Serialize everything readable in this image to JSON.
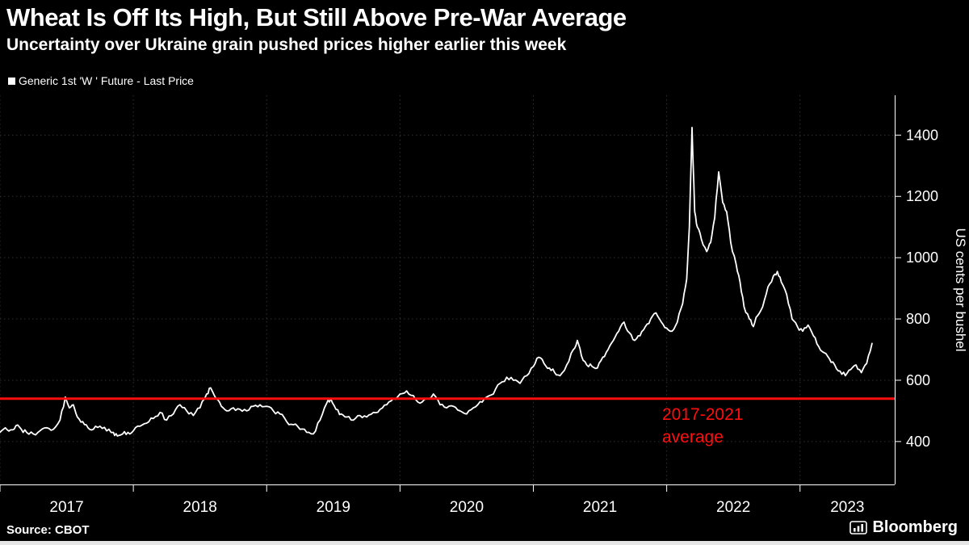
{
  "header": {
    "title": "Wheat Is Off Its High, But Still Above Pre-War Average",
    "subtitle": "Uncertainty over Ukraine grain pushed prices higher earlier this week"
  },
  "legend": {
    "marker_color": "#ffffff",
    "label": "Generic 1st 'W ' Future - Last Price"
  },
  "annotation": {
    "line1": "2017-2021",
    "line2": "average"
  },
  "footer": {
    "source": "Source: CBOT",
    "brand": "Bloomberg"
  },
  "colors": {
    "background": "#000000",
    "text": "#ffffff",
    "grid": "#303030",
    "accent_red": "#ff0e0e"
  },
  "chart_data": {
    "type": "line",
    "title": "Wheat Is Off Its High, But Still Above Pre-War Average",
    "subtitle": "Uncertainty over Ukraine grain pushed prices higher earlier this week",
    "xlabel": "",
    "ylabel": "US cents per bushel",
    "ylim": [
      260,
      1530
    ],
    "xlim": [
      2017.0,
      2023.71
    ],
    "yticks": [
      400,
      600,
      800,
      1000,
      1200,
      1400
    ],
    "xticks": [
      2017,
      2018,
      2019,
      2020,
      2021,
      2022,
      2023
    ],
    "xtick_labels": [
      "2017",
      "2018",
      "2019",
      "2020",
      "2021",
      "2022",
      "2023"
    ],
    "grid": true,
    "grid_color": "#303030",
    "legend_position": "top-left",
    "reference_line": {
      "value": 540,
      "label": "2017-2021 average",
      "color": "#ff0e0e"
    },
    "series": [
      {
        "name": "Generic 1st 'W ' Future - Last Price",
        "color": "#ffffff",
        "points": [
          [
            2017.0,
            430
          ],
          [
            2017.04,
            445
          ],
          [
            2017.08,
            438
          ],
          [
            2017.12,
            452
          ],
          [
            2017.16,
            440
          ],
          [
            2017.2,
            430
          ],
          [
            2017.25,
            425
          ],
          [
            2017.3,
            435
          ],
          [
            2017.35,
            445
          ],
          [
            2017.4,
            440
          ],
          [
            2017.45,
            470
          ],
          [
            2017.49,
            545
          ],
          [
            2017.52,
            510
          ],
          [
            2017.55,
            520
          ],
          [
            2017.58,
            480
          ],
          [
            2017.62,
            465
          ],
          [
            2017.66,
            445
          ],
          [
            2017.7,
            440
          ],
          [
            2017.75,
            450
          ],
          [
            2017.8,
            435
          ],
          [
            2017.85,
            430
          ],
          [
            2017.88,
            418
          ],
          [
            2017.92,
            425
          ],
          [
            2017.96,
            430
          ],
          [
            2018.0,
            435
          ],
          [
            2018.05,
            450
          ],
          [
            2018.1,
            460
          ],
          [
            2018.15,
            475
          ],
          [
            2018.2,
            495
          ],
          [
            2018.25,
            470
          ],
          [
            2018.3,
            490
          ],
          [
            2018.35,
            520
          ],
          [
            2018.4,
            500
          ],
          [
            2018.45,
            485
          ],
          [
            2018.5,
            510
          ],
          [
            2018.55,
            555
          ],
          [
            2018.58,
            575
          ],
          [
            2018.62,
            540
          ],
          [
            2018.66,
            515
          ],
          [
            2018.7,
            500
          ],
          [
            2018.75,
            510
          ],
          [
            2018.8,
            505
          ],
          [
            2018.85,
            500
          ],
          [
            2018.9,
            515
          ],
          [
            2018.95,
            520
          ],
          [
            2019.0,
            515
          ],
          [
            2019.05,
            500
          ],
          [
            2019.1,
            490
          ],
          [
            2019.15,
            465
          ],
          [
            2019.2,
            455
          ],
          [
            2019.25,
            440
          ],
          [
            2019.3,
            430
          ],
          [
            2019.35,
            425
          ],
          [
            2019.4,
            470
          ],
          [
            2019.45,
            525
          ],
          [
            2019.48,
            540
          ],
          [
            2019.52,
            505
          ],
          [
            2019.56,
            490
          ],
          [
            2019.6,
            480
          ],
          [
            2019.65,
            470
          ],
          [
            2019.7,
            485
          ],
          [
            2019.75,
            480
          ],
          [
            2019.8,
            495
          ],
          [
            2019.85,
            505
          ],
          [
            2019.9,
            520
          ],
          [
            2019.95,
            540
          ],
          [
            2020.0,
            555
          ],
          [
            2020.05,
            565
          ],
          [
            2020.1,
            550
          ],
          [
            2020.15,
            525
          ],
          [
            2020.2,
            540
          ],
          [
            2020.25,
            555
          ],
          [
            2020.3,
            520
          ],
          [
            2020.35,
            510
          ],
          [
            2020.4,
            515
          ],
          [
            2020.45,
            500
          ],
          [
            2020.5,
            490
          ],
          [
            2020.55,
            510
          ],
          [
            2020.6,
            530
          ],
          [
            2020.65,
            545
          ],
          [
            2020.7,
            555
          ],
          [
            2020.75,
            590
          ],
          [
            2020.8,
            610
          ],
          [
            2020.85,
            600
          ],
          [
            2020.9,
            590
          ],
          [
            2020.95,
            615
          ],
          [
            2021.0,
            645
          ],
          [
            2021.04,
            675
          ],
          [
            2021.08,
            655
          ],
          [
            2021.12,
            640
          ],
          [
            2021.16,
            625
          ],
          [
            2021.2,
            615
          ],
          [
            2021.25,
            650
          ],
          [
            2021.3,
            700
          ],
          [
            2021.33,
            730
          ],
          [
            2021.36,
            680
          ],
          [
            2021.4,
            650
          ],
          [
            2021.44,
            645
          ],
          [
            2021.48,
            640
          ],
          [
            2021.52,
            675
          ],
          [
            2021.56,
            700
          ],
          [
            2021.6,
            730
          ],
          [
            2021.64,
            760
          ],
          [
            2021.68,
            790
          ],
          [
            2021.72,
            755
          ],
          [
            2021.76,
            730
          ],
          [
            2021.8,
            745
          ],
          [
            2021.84,
            775
          ],
          [
            2021.88,
            800
          ],
          [
            2021.92,
            820
          ],
          [
            2021.96,
            790
          ],
          [
            2022.0,
            770
          ],
          [
            2022.04,
            760
          ],
          [
            2022.08,
            790
          ],
          [
            2022.12,
            850
          ],
          [
            2022.15,
            930
          ],
          [
            2022.17,
            1100
          ],
          [
            2022.19,
            1425
          ],
          [
            2022.21,
            1150
          ],
          [
            2022.23,
            1100
          ],
          [
            2022.26,
            1060
          ],
          [
            2022.3,
            1020
          ],
          [
            2022.33,
            1050
          ],
          [
            2022.36,
            1130
          ],
          [
            2022.39,
            1280
          ],
          [
            2022.42,
            1180
          ],
          [
            2022.45,
            1150
          ],
          [
            2022.48,
            1050
          ],
          [
            2022.52,
            980
          ],
          [
            2022.55,
            920
          ],
          [
            2022.58,
            840
          ],
          [
            2022.62,
            800
          ],
          [
            2022.65,
            775
          ],
          [
            2022.68,
            810
          ],
          [
            2022.72,
            840
          ],
          [
            2022.76,
            905
          ],
          [
            2022.8,
            940
          ],
          [
            2022.83,
            955
          ],
          [
            2022.86,
            920
          ],
          [
            2022.9,
            880
          ],
          [
            2022.94,
            800
          ],
          [
            2022.98,
            775
          ],
          [
            2023.02,
            760
          ],
          [
            2023.06,
            780
          ],
          [
            2023.1,
            745
          ],
          [
            2023.14,
            710
          ],
          [
            2023.18,
            690
          ],
          [
            2023.22,
            670
          ],
          [
            2023.26,
            650
          ],
          [
            2023.3,
            630
          ],
          [
            2023.34,
            615
          ],
          [
            2023.38,
            635
          ],
          [
            2023.42,
            650
          ],
          [
            2023.46,
            625
          ],
          [
            2023.5,
            655
          ],
          [
            2023.54,
            720
          ]
        ]
      }
    ]
  }
}
